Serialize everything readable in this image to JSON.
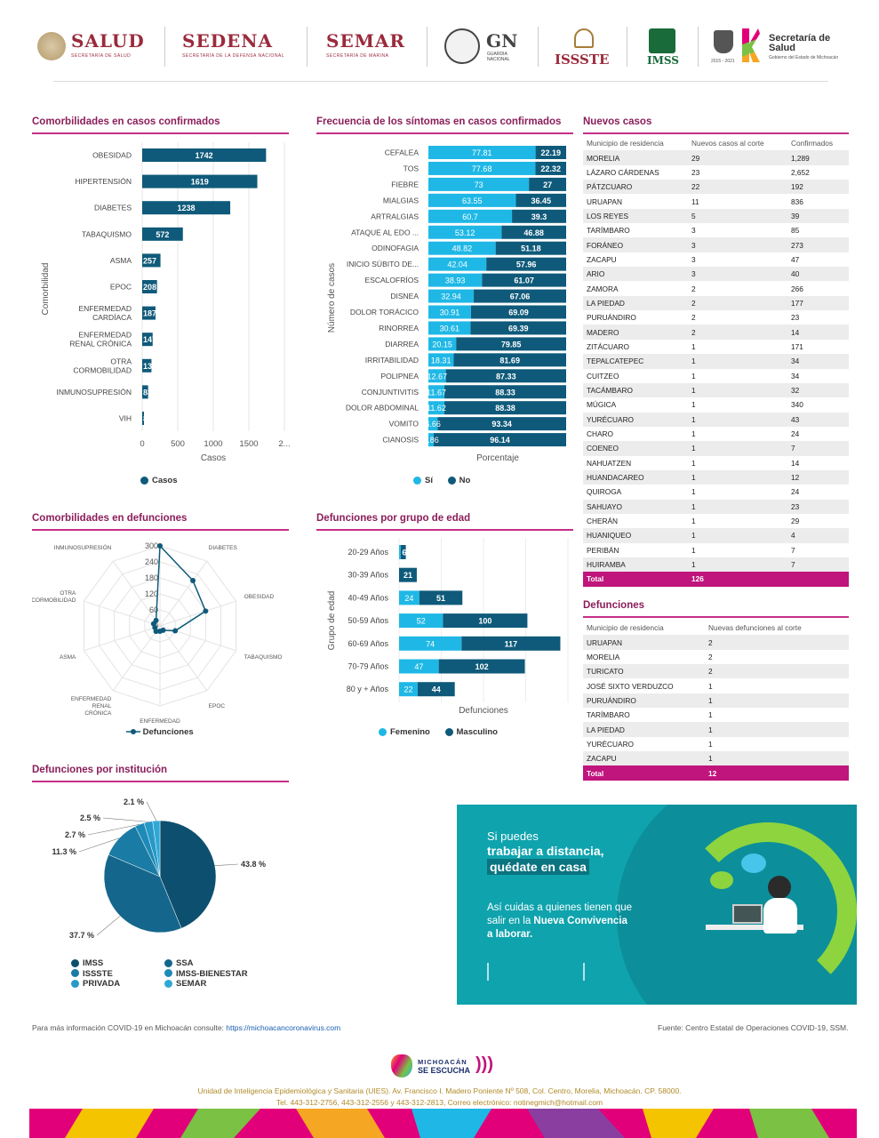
{
  "header": {
    "logos": [
      "SALUD",
      "SEDENA",
      "SEMAR",
      "GN",
      "ISSSTE",
      "IMSS",
      "Secretaría de Salud"
    ],
    "salud_sub": "SECRETARÍA DE SALUD",
    "sedena_sub": "SECRETARÍA DE LA DEFENSA NACIONAL",
    "semar_sub": "SECRETARÍA DE MARINA",
    "gn_sub": "GUARDIA NACIONAL",
    "michoacan_years": "2015 - 2021",
    "ss_sub": "Gobierno del Estado de Michoacán"
  },
  "comorb": {
    "title": "Comorbilidades en casos confirmados",
    "ylabel": "Comorbilidad",
    "xlabel": "Casos",
    "legend": "Casos",
    "ticks": [
      "0",
      "500",
      "1000",
      "1500",
      "2..."
    ]
  },
  "sintomas": {
    "title": "Frecuencia de los síntomas en casos confirmados",
    "ylabel": "Número de casos",
    "xlabel": "Porcentaje",
    "legend_si": "Sí",
    "legend_no": "No"
  },
  "nuevos": {
    "title": "Nuevos casos",
    "headers": [
      "Municipio de residencia",
      "Nuevos casos al corte",
      "Confirmados"
    ],
    "rows": [
      [
        "MORELIA",
        "29",
        "1,289"
      ],
      [
        "LÁZARO CÁRDENAS",
        "23",
        "2,652"
      ],
      [
        "PÁTZCUARO",
        "22",
        "192"
      ],
      [
        "URUAPAN",
        "11",
        "836"
      ],
      [
        "LOS REYES",
        "5",
        "39"
      ],
      [
        "TARÍMBARO",
        "3",
        "85"
      ],
      [
        "FORÁNEO",
        "3",
        "273"
      ],
      [
        "ZACAPU",
        "3",
        "47"
      ],
      [
        "ARIO",
        "3",
        "40"
      ],
      [
        "ZAMORA",
        "2",
        "266"
      ],
      [
        "LA PIEDAD",
        "2",
        "177"
      ],
      [
        "PURUÁNDIRO",
        "2",
        "23"
      ],
      [
        "MADERO",
        "2",
        "14"
      ],
      [
        "ZITÁCUARO",
        "1",
        "171"
      ],
      [
        "TEPALCATEPEC",
        "1",
        "34"
      ],
      [
        "CUITZEO",
        "1",
        "34"
      ],
      [
        "TACÁMBARO",
        "1",
        "32"
      ],
      [
        "MÚGICA",
        "1",
        "340"
      ],
      [
        "YURÉCUARO",
        "1",
        "43"
      ],
      [
        "CHARO",
        "1",
        "24"
      ],
      [
        "COENEO",
        "1",
        "7"
      ],
      [
        "NAHUATZEN",
        "1",
        "14"
      ],
      [
        "HUANDACAREO",
        "1",
        "12"
      ],
      [
        "QUIROGA",
        "1",
        "24"
      ],
      [
        "SAHUAYO",
        "1",
        "23"
      ],
      [
        "CHERÁN",
        "1",
        "29"
      ],
      [
        "HUANIQUEO",
        "1",
        "4"
      ],
      [
        "PERIBÁN",
        "1",
        "7"
      ],
      [
        "HUIRAMBA",
        "1",
        "7"
      ]
    ],
    "total": [
      "Total",
      "126",
      ""
    ]
  },
  "defunciones": {
    "title": "Defunciones",
    "headers": [
      "Municipio de residencia",
      "Nuevas defunciones al corte"
    ],
    "rows": [
      [
        "URUAPAN",
        "2"
      ],
      [
        "MORELIA",
        "2"
      ],
      [
        "TURICATO",
        "2"
      ],
      [
        "JOSÉ SIXTO VERDUZCO",
        "1"
      ],
      [
        "PURUÁNDIRO",
        "1"
      ],
      [
        "TARÍMBARO",
        "1"
      ],
      [
        "LA PIEDAD",
        "1"
      ],
      [
        "YURÉCUARO",
        "1"
      ],
      [
        "ZACAPU",
        "1"
      ]
    ],
    "total": [
      "Total",
      "12"
    ]
  },
  "radar": {
    "title": "Comorbilidades en defunciones",
    "legend": "Defunciones"
  },
  "edad": {
    "title": "Defunciones por grupo de edad",
    "ylabel": "Grupo de edad",
    "xlabel": "Defunciones",
    "legend_f": "Femenino",
    "legend_m": "Masculino"
  },
  "inst": {
    "title": "Defunciones por institución",
    "legend": [
      "IMSS",
      "SSA",
      "ISSSTE",
      "IMSS-BIENESTAR",
      "PRIVADA",
      "SEMAR"
    ]
  },
  "banner": {
    "line1": "Si puedes",
    "line2": "trabajar a distancia,",
    "line3": "quédate en casa",
    "line4": "Así cuidas a quienes tienen que",
    "line5a": "salir en la ",
    "line5b": "Nueva Convivencia",
    "line6": "a laborar."
  },
  "footer": {
    "info_pre": "Para más información COVID-19 en Michoacán consulte: ",
    "info_link": "https://michoacancoronavirus.com",
    "fuente": "Fuente: Centro Estatal de Operaciones COVID-19, SSM.",
    "logo_top": "MICHOACÁN",
    "logo_bottom": "SE ESCUCHA",
    "address": "Unidad de Inteligencia Epidemiológica y Sanitaria (UIES). Av. Francisco I. Madero Poniente Nº 508, Col. Centro, Morelia, Michoacán. CP. 58000.",
    "phones": "Tel. 443-312-2756, 443-312-2556 y 443-312-2813, Correo electrónico: notinegmich@hotmail.com"
  },
  "colors": {
    "dark": "#0f5a7a",
    "light": "#1fb8e6",
    "magenta": "#c0157c",
    "title": "#8b1e5a"
  },
  "chart_data": [
    {
      "type": "bar",
      "id": "comorbilidades",
      "title": "Comorbilidades en casos confirmados",
      "categories": [
        "OBESIDAD",
        "HIPERTENSIÓN",
        "DIABETES",
        "TABAQUISMO",
        "ASMA",
        "EPOC",
        "ENFERMEDAD CARDÍACA",
        "ENFERMEDAD RENAL CRÓNICA",
        "OTRA COMORBILIDAD",
        "INMUNOSUPRESIÓN",
        "VIH"
      ],
      "values": [
        1742,
        1619,
        1238,
        572,
        257,
        208,
        187,
        147,
        130,
        83,
        8
      ],
      "xlabel": "Casos",
      "ylabel": "Comorbilidad",
      "xlim": [
        0,
        2000
      ]
    },
    {
      "type": "bar",
      "id": "sintomas",
      "stacked": true,
      "title": "Frecuencia de los síntomas en casos confirmados",
      "categories": [
        "CEFALEA",
        "TOS",
        "FIEBRE",
        "MIALGIAS",
        "ARTRALGIAS",
        "ATAQUE AL EDO ...",
        "ODINOFAGIA",
        "INICIO SÚBITO DE...",
        "ESCALOFRÍOS",
        "DISNEA",
        "DOLOR TORÁCICO",
        "RINORREA",
        "DIARREA",
        "IRRITABILIDAD",
        "POLIPNEA",
        "CONJUNTIVITIS",
        "DOLOR ABDOMINAL",
        "VOMITO",
        "CIANOSIS"
      ],
      "series": [
        {
          "name": "Sí",
          "values": [
            77.81,
            77.68,
            73,
            63.55,
            60.7,
            53.12,
            48.82,
            42.04,
            38.93,
            32.94,
            30.91,
            30.61,
            20.15,
            18.31,
            12.67,
            11.67,
            11.62,
            6.66,
            3.86
          ]
        },
        {
          "name": "No",
          "values": [
            22.19,
            22.32,
            27,
            36.45,
            39.3,
            46.88,
            51.18,
            57.96,
            61.07,
            67.06,
            69.09,
            69.39,
            79.85,
            81.69,
            87.33,
            88.33,
            88.38,
            93.34,
            96.14
          ]
        }
      ],
      "xlabel": "Porcentaje",
      "ylabel": "Número de casos"
    },
    {
      "type": "radar",
      "id": "radar",
      "title": "Comorbilidades en defunciones",
      "categories": [
        "HIPERTENSIÓN",
        "DIABETES",
        "OBESIDAD",
        "TABAQUISMO",
        "EPOC",
        "ENFERMEDAD CARDÍACA",
        "ENFERMEDAD RENAL CRÓNICA",
        "ASMA",
        "OTRA COMORBILIDAD",
        "INMUNOSUPRESIÓN"
      ],
      "values": [
        300,
        210,
        180,
        60,
        20,
        20,
        25,
        20,
        25,
        25
      ],
      "rticks": [
        "0",
        "60",
        "120",
        "180",
        "240",
        "300"
      ],
      "rlim": [
        0,
        300
      ]
    },
    {
      "type": "bar",
      "id": "edad",
      "stacked": true,
      "title": "Defunciones por grupo de edad",
      "categories": [
        "20-29 Años",
        "30-39 Años",
        "40-49 Años",
        "50-59 Años",
        "60-69 Años",
        "70-79 Años",
        "80 y + Años"
      ],
      "series": [
        {
          "name": "Femenino",
          "values": [
            2,
            0,
            24,
            52,
            74,
            47,
            22
          ]
        },
        {
          "name": "Masculino",
          "values": [
            6,
            21,
            51,
            100,
            117,
            102,
            44
          ]
        }
      ],
      "labels_f": [
        "",
        "",
        "24",
        "52",
        "74",
        "47",
        "22"
      ],
      "labels_m": [
        "6",
        "21",
        "51",
        "100",
        "117",
        "102",
        "44"
      ],
      "xlabel": "Defunciones",
      "ylabel": "Grupo de edad",
      "xlim": [
        0,
        200
      ]
    },
    {
      "type": "pie",
      "id": "institucion",
      "title": "Defunciones por institución",
      "categories": [
        "IMSS",
        "SSA",
        "ISSSTE",
        "IMSS-BIENESTAR",
        "PRIVADA",
        "SEMAR"
      ],
      "values": [
        43.8,
        37.7,
        11.3,
        2.7,
        2.5,
        2.1
      ],
      "labels": [
        "43.8 %",
        "37.7 %",
        "11.3 %",
        "2.7 %",
        "2.5 %",
        "2.1 %"
      ]
    }
  ]
}
